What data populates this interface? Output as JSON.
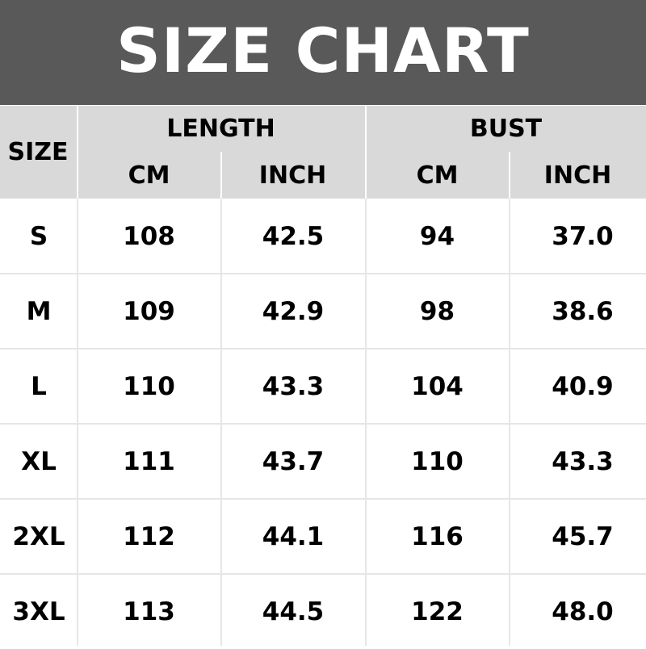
{
  "title": "SIZE CHART",
  "header": {
    "size": "SIZE",
    "groups": [
      "LENGTH",
      "BUST"
    ],
    "units": [
      "CM",
      "INCH",
      "CM",
      "INCH"
    ]
  },
  "rows": [
    [
      "S",
      "108",
      "42.5",
      "94",
      "37.0"
    ],
    [
      "M",
      "109",
      "42.9",
      "98",
      "38.6"
    ],
    [
      "L",
      "110",
      "43.3",
      "104",
      "40.9"
    ],
    [
      "XL",
      "111",
      "43.7",
      "110",
      "43.3"
    ],
    [
      "2XL",
      "112",
      "44.1",
      "116",
      "45.7"
    ],
    [
      "3XL",
      "113",
      "44.5",
      "122",
      "48.0"
    ]
  ],
  "colors": {
    "title_bg": "#595959",
    "header_bg": "#d9d9d9",
    "grid": "#e6e6e6"
  }
}
